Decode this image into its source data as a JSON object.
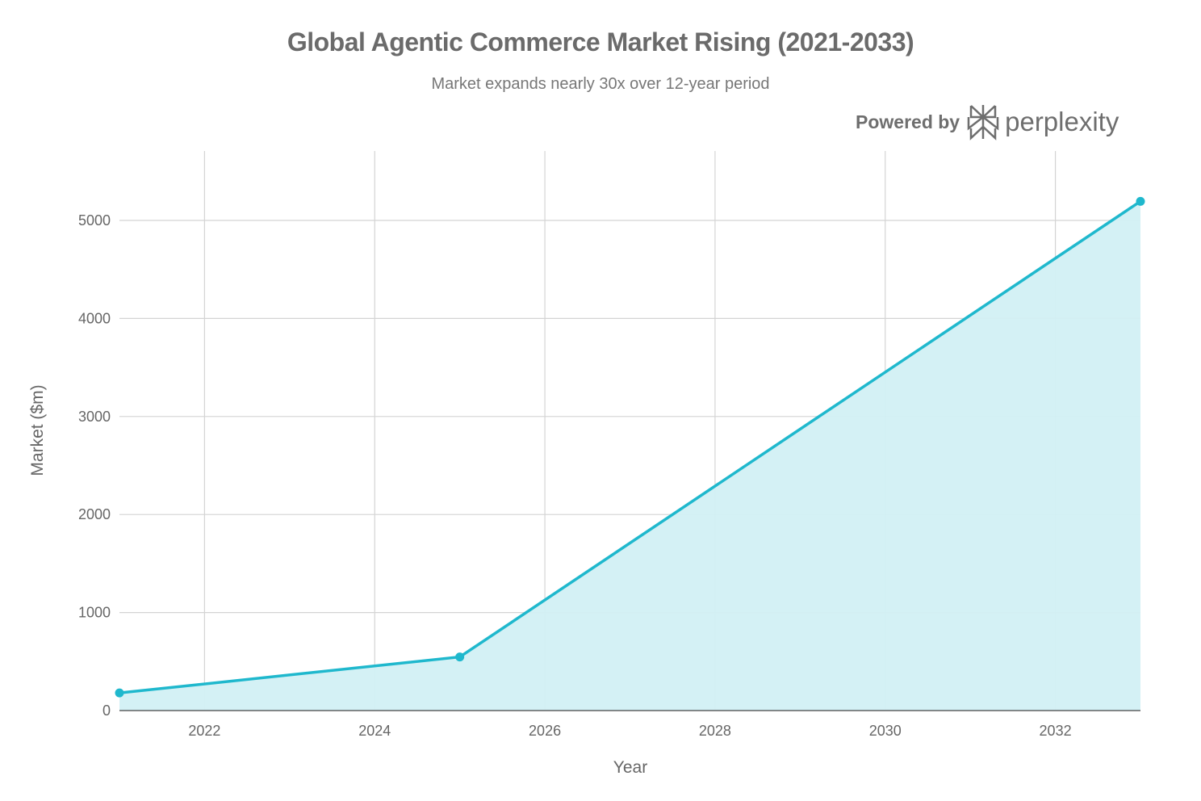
{
  "chart_data": {
    "type": "area",
    "title": "Global Agentic Commerce Market Rising (2021-2033)",
    "subtitle": "Market expands nearly 30x over 12-year period",
    "xlabel": "Year",
    "ylabel": "Market ($m)",
    "x": [
      2021,
      2025,
      2033
    ],
    "values": [
      180,
      547,
      5195
    ],
    "xlim": [
      2021,
      2033
    ],
    "ylim": [
      0,
      5700
    ],
    "x_ticks": [
      "2022",
      "2024",
      "2026",
      "2028",
      "2030",
      "2032"
    ],
    "y_ticks": [
      "0",
      "1000",
      "2000",
      "3000",
      "4000",
      "5000"
    ],
    "grid": true,
    "line_color": "#1fb8cd",
    "fill_color": "#d2f0f4"
  },
  "branding": {
    "powered_by": "Powered by",
    "logo_text": "perplexity"
  }
}
